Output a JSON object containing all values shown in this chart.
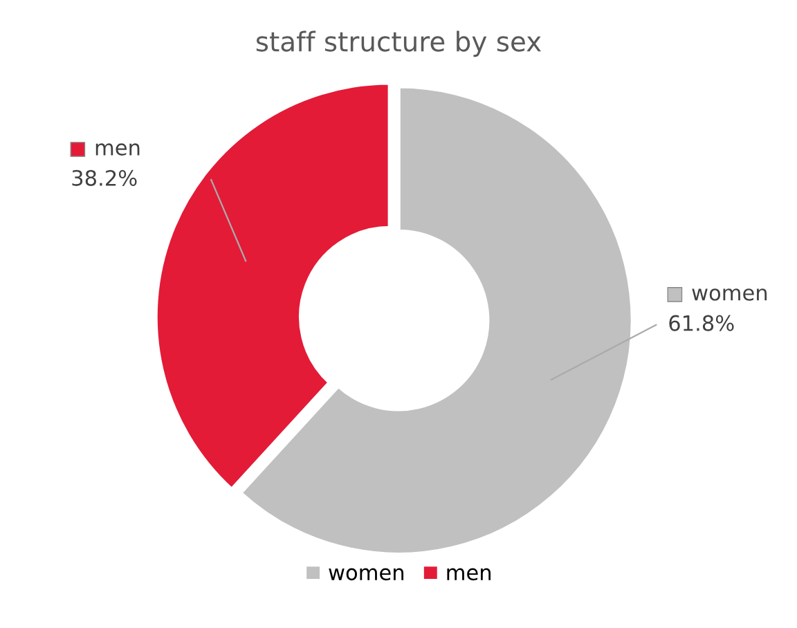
{
  "chart_data": {
    "type": "donut",
    "title": "staff structure by sex",
    "categories": [
      "women",
      "men"
    ],
    "values": [
      61.8,
      38.2
    ],
    "colors": [
      "#c0c0c0",
      "#e31b37"
    ],
    "value_labels": [
      "61.8%",
      "38.2%"
    ],
    "legend": "bottom"
  }
}
